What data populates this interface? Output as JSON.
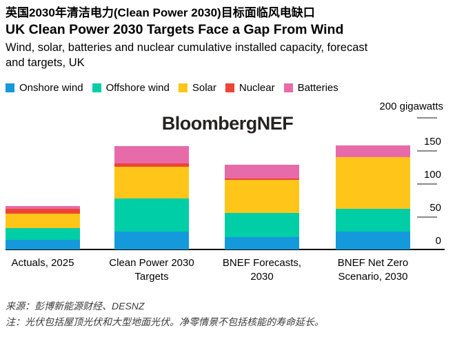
{
  "header": {
    "title_zh": "英国2030年清洁电力(Clean Power 2030)目标面临风电缺口",
    "title_en": "UK Clean Power 2030 Targets Face a Gap From Wind",
    "subtitle": "Wind, solar, batteries and nuclear cumulative installed capacity, forecast\nand targets, UK"
  },
  "watermark": "BloombergNEF",
  "axis": {
    "unit_label": "200 gigawatts",
    "unit_tick_value": 200,
    "ticks": [
      150,
      100,
      50,
      0
    ]
  },
  "chart_data": {
    "type": "bar",
    "stacked": true,
    "title": "UK Clean Power 2030 Targets Face a Gap From Wind",
    "ylabel": "gigawatts",
    "ylim": [
      0,
      200
    ],
    "grid": false,
    "legend_position": "top-left",
    "categories": [
      "Actuals, 2025",
      "Clean Power 2030\nTargets",
      "BNEF Forecasts,\n2030",
      "BNEF Net Zero\nScenario, 2030"
    ],
    "series": [
      {
        "name": "Onshore wind",
        "color": "#1499DB",
        "values": [
          15,
          27,
          19,
          27
        ]
      },
      {
        "name": "Offshore wind",
        "color": "#00CEA6",
        "values": [
          17,
          50,
          36,
          35
        ]
      },
      {
        "name": "Solar",
        "color": "#FFC619",
        "values": [
          22,
          48,
          50,
          78
        ]
      },
      {
        "name": "Nuclear",
        "color": "#EE4437",
        "values": [
          7,
          5,
          2,
          0
        ]
      },
      {
        "name": "Batteries",
        "color": "#E76BA8",
        "values": [
          5,
          26,
          21,
          17
        ]
      }
    ]
  },
  "footer": {
    "source": "来源：彭博新能源财经、DESNZ",
    "note": "注：光伏包括屋顶光伏和大型地面光伏。净零情景不包括核能的寿命延长。"
  }
}
